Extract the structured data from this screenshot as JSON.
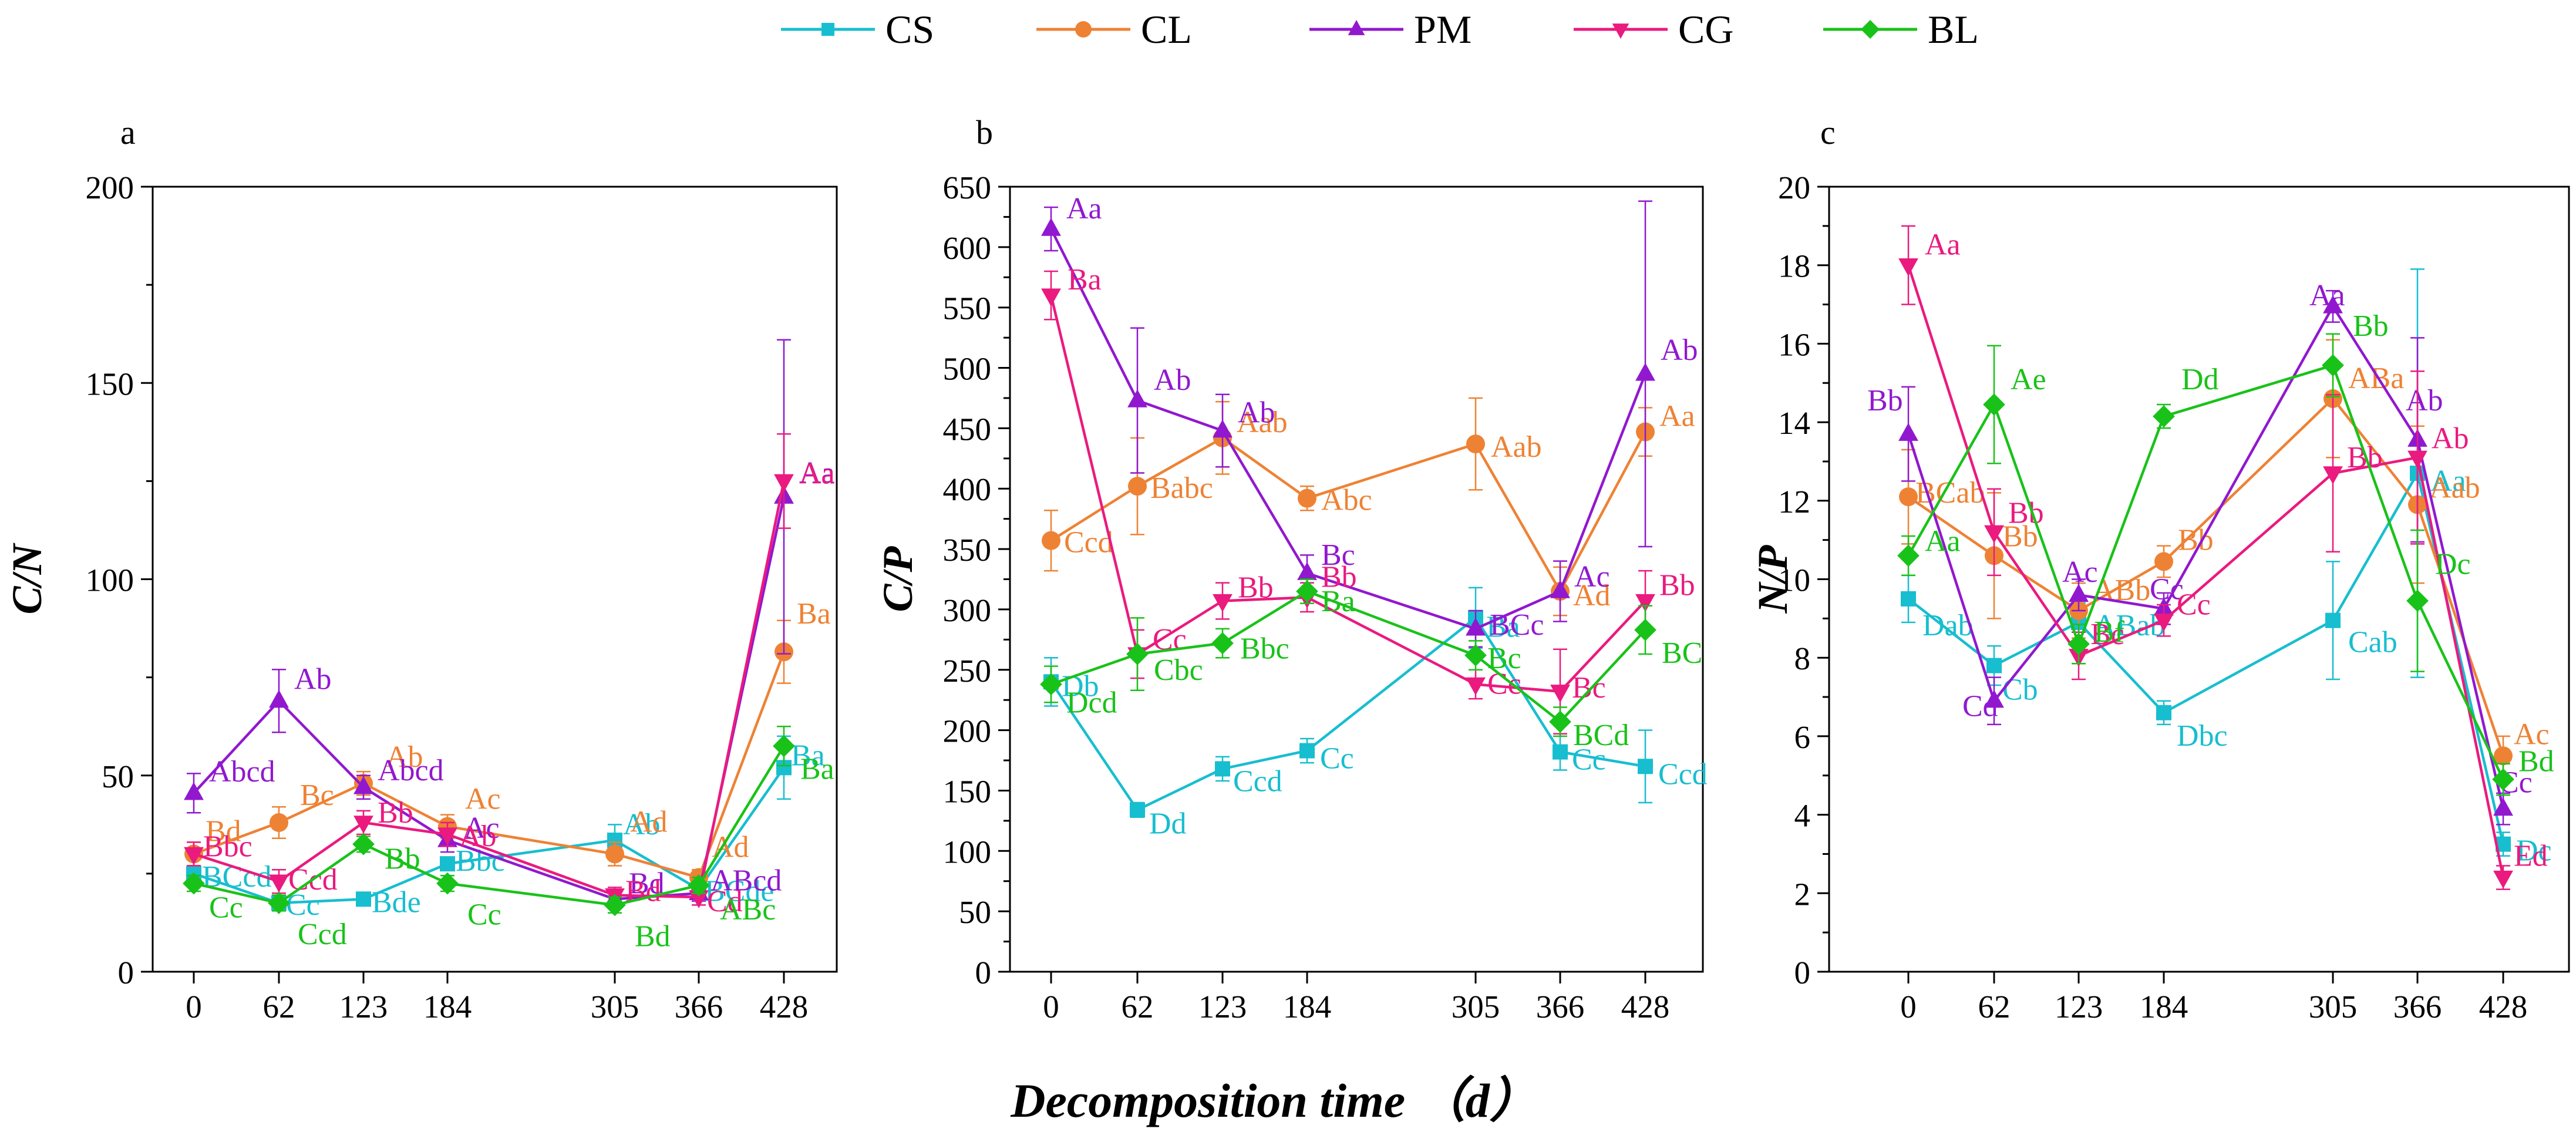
{
  "figure": {
    "x_title": "Decomposition time （d）",
    "legend": [
      {
        "name": "CS",
        "color": "#17becf",
        "marker": "square"
      },
      {
        "name": "CL",
        "color": "#ee8234",
        "marker": "circle"
      },
      {
        "name": "PM",
        "color": "#9118cf",
        "marker": "triangle-up"
      },
      {
        "name": "CG",
        "color": "#ea1a7f",
        "marker": "triangle-down"
      },
      {
        "name": "BL",
        "color": "#19c219",
        "marker": "diamond"
      }
    ]
  },
  "chart_data": [
    {
      "type": "line",
      "panel_label": "a",
      "ylabel": "C/N",
      "x": [
        0,
        62,
        123,
        184,
        305,
        366,
        428
      ],
      "xticks": [
        "0",
        "62",
        "123",
        "184",
        "305",
        "366",
        "428"
      ],
      "ylim": [
        0,
        200
      ],
      "yticks": [
        "0",
        "50",
        "100",
        "150",
        "200"
      ],
      "ytick_values": [
        0,
        50,
        100,
        150,
        200
      ],
      "series": [
        {
          "name": "CS",
          "color": "#17becf",
          "marker": "square",
          "values": [
            25,
            17.5,
            18.5,
            27.5,
            33.5,
            21,
            52
          ],
          "err": [
            2,
            1.5,
            1.5,
            1.5,
            4,
            2,
            8
          ],
          "labels": [
            "BCcd",
            "Cc",
            "Bde",
            "Bbc",
            "Ab",
            "BCde",
            "Ba"
          ]
        },
        {
          "name": "CL",
          "color": "#ee8234",
          "marker": "circle",
          "values": [
            30,
            38,
            48,
            37,
            30,
            24,
            81.5
          ],
          "err": [
            3,
            4,
            3,
            3,
            3,
            2,
            8
          ],
          "labels": [
            "Bd",
            "Bc",
            "Ab",
            "Ac",
            "Ad",
            "Ad",
            "Ba"
          ]
        },
        {
          "name": "PM",
          "color": "#9118cf",
          "marker": "triangle",
          "values": [
            45.5,
            69,
            47,
            33.5,
            18.5,
            20,
            121
          ],
          "err": [
            5,
            8,
            3,
            3,
            2,
            2,
            40
          ],
          "labels": [
            "Abcd",
            "Ab",
            "Abcd",
            "Ac",
            "Bd",
            "ABcd",
            "Aa"
          ]
        },
        {
          "name": "CG",
          "color": "#ea1a7f",
          "marker": "triangle-down",
          "values": [
            30,
            23,
            38,
            35,
            19.5,
            19,
            125
          ],
          "err": [
            3,
            3,
            3,
            3,
            2,
            2,
            12
          ],
          "labels": [
            "Bbc",
            "Ccd",
            "Bb",
            "Ab",
            "Bd",
            "Cd",
            "Aa"
          ]
        },
        {
          "name": "BL",
          "color": "#19c219",
          "marker": "diamond",
          "values": [
            22.5,
            17.5,
            32.5,
            22.5,
            17,
            22,
            57.5
          ],
          "err": [
            2,
            2,
            2,
            2,
            2,
            2,
            5
          ],
          "labels": [
            "Cc",
            "Ccd",
            "Bb",
            "Cc",
            "Bd",
            "ABc",
            "Ba"
          ]
        }
      ]
    },
    {
      "type": "line",
      "panel_label": "b",
      "ylabel": "C/P",
      "x": [
        0,
        62,
        123,
        184,
        305,
        366,
        428
      ],
      "xticks": [
        "0",
        "62",
        "123",
        "184",
        "305",
        "366",
        "428"
      ],
      "ylim": [
        0,
        650
      ],
      "yticks": [
        "0",
        "50",
        "100",
        "150",
        "200",
        "250",
        "300",
        "350",
        "400",
        "450",
        "500",
        "550",
        "600",
        "650"
      ],
      "ytick_values": [
        0,
        50,
        100,
        150,
        200,
        250,
        300,
        350,
        400,
        450,
        500,
        550,
        600,
        650
      ],
      "series": [
        {
          "name": "CS",
          "color": "#17becf",
          "marker": "square",
          "values": [
            240,
            134,
            168,
            183,
            293,
            182,
            170
          ],
          "err": [
            20,
            6,
            10,
            10,
            25,
            15,
            30
          ],
          "labels": [
            "Db",
            "Dd",
            "Ccd",
            "Cc",
            "Ba",
            "Cc",
            "Ccd"
          ]
        },
        {
          "name": "CL",
          "color": "#ee8234",
          "marker": "circle",
          "values": [
            357,
            402,
            442,
            392,
            437,
            315,
            447
          ],
          "err": [
            25,
            40,
            30,
            10,
            38,
            20,
            20
          ],
          "labels": [
            "Ccd",
            "Babc",
            "Aab",
            "Abc",
            "Aab",
            "Ad",
            "Aa"
          ]
        },
        {
          "name": "PM",
          "color": "#9118cf",
          "marker": "triangle",
          "values": [
            615,
            473,
            448,
            330,
            284,
            315,
            495
          ],
          "err": [
            18,
            60,
            30,
            15,
            15,
            25,
            143
          ],
          "labels": [
            "Aa",
            "Ab",
            "Ab",
            "Bc",
            "BCc",
            "Ac",
            "Ab"
          ]
        },
        {
          "name": "CG",
          "color": "#ea1a7f",
          "marker": "triangle-down",
          "values": [
            560,
            263,
            307,
            310,
            238,
            232,
            307
          ],
          "err": [
            20,
            20,
            15,
            12,
            12,
            35,
            25
          ],
          "labels": [
            "Ba",
            "Cc",
            "Bb",
            "Bb",
            "Cc",
            "Bc",
            "Bb"
          ]
        },
        {
          "name": "BL",
          "color": "#19c219",
          "marker": "diamond",
          "values": [
            238,
            263,
            272,
            315,
            262,
            207,
            283
          ],
          "err": [
            15,
            30,
            12,
            10,
            12,
            12,
            20
          ],
          "labels": [
            "Dcd",
            "Cbc",
            "Bbc",
            "Ba",
            "Bc",
            "BCd",
            "BC"
          ]
        }
      ]
    },
    {
      "type": "line",
      "panel_label": "c",
      "ylabel": "N/P",
      "x": [
        0,
        62,
        123,
        184,
        305,
        366,
        428
      ],
      "xticks": [
        "0",
        "62",
        "123",
        "184",
        "305",
        "366",
        "428"
      ],
      "ylim": [
        0,
        20
      ],
      "yticks": [
        "0",
        "2",
        "4",
        "6",
        "8",
        "10",
        "12",
        "14",
        "16",
        "18",
        "20"
      ],
      "ytick_values": [
        0,
        2,
        4,
        6,
        8,
        10,
        12,
        14,
        16,
        18,
        20
      ],
      "series": [
        {
          "name": "CS",
          "color": "#17becf",
          "marker": "square",
          "values": [
            9.5,
            7.8,
            8.9,
            6.6,
            8.95,
            12.7,
            3.25
          ],
          "err": [
            0.6,
            0.5,
            0.5,
            0.3,
            1.5,
            5.2,
            0.3
          ],
          "labels": [
            "Dab",
            "Cb",
            "ABab",
            "Dbc",
            "Cab",
            "Aa",
            "Dc"
          ]
        },
        {
          "name": "CL",
          "color": "#ee8234",
          "marker": "circle",
          "values": [
            12.1,
            10.6,
            9.2,
            10.45,
            14.6,
            11.9,
            5.5
          ],
          "err": [
            1.2,
            1.6,
            0.7,
            0.4,
            1.5,
            2,
            0.5
          ],
          "labels": [
            "BCab",
            "Bb",
            "ABb",
            "Bb",
            "ABa",
            "Aab",
            "Ac"
          ]
        },
        {
          "name": "PM",
          "color": "#9118cf",
          "marker": "triangle",
          "values": [
            13.7,
            6.9,
            9.6,
            9.25,
            16.95,
            13.55,
            4.15
          ],
          "err": [
            1.2,
            0.6,
            0.4,
            0.4,
            0.4,
            2.6,
            0.4
          ],
          "labels": [
            "Bb",
            "Cd",
            "Ac",
            "Cc",
            "Aa",
            "Ab",
            "Cc"
          ]
        },
        {
          "name": "CG",
          "color": "#ea1a7f",
          "marker": "triangle-down",
          "values": [
            18,
            11.2,
            8.05,
            8.95,
            12.7,
            13.1,
            2.4
          ],
          "err": [
            1,
            1.1,
            0.6,
            0.4,
            2,
            2.2,
            0.3
          ],
          "labels": [
            "Aa",
            "Bb",
            "Bc",
            "Cc",
            "Bb",
            "Ab",
            "Ed"
          ]
        },
        {
          "name": "BL",
          "color": "#19c219",
          "marker": "diamond",
          "values": [
            10.6,
            14.45,
            8.35,
            14.15,
            15.45,
            9.45,
            4.9
          ],
          "err": [
            0.5,
            1.5,
            0.5,
            0.3,
            0.8,
            1.8,
            0.4
          ],
          "labels": [
            "Aa",
            "Ae",
            "Bf",
            "Dd",
            "Bb",
            "Dc",
            "Bd"
          ]
        }
      ]
    }
  ]
}
